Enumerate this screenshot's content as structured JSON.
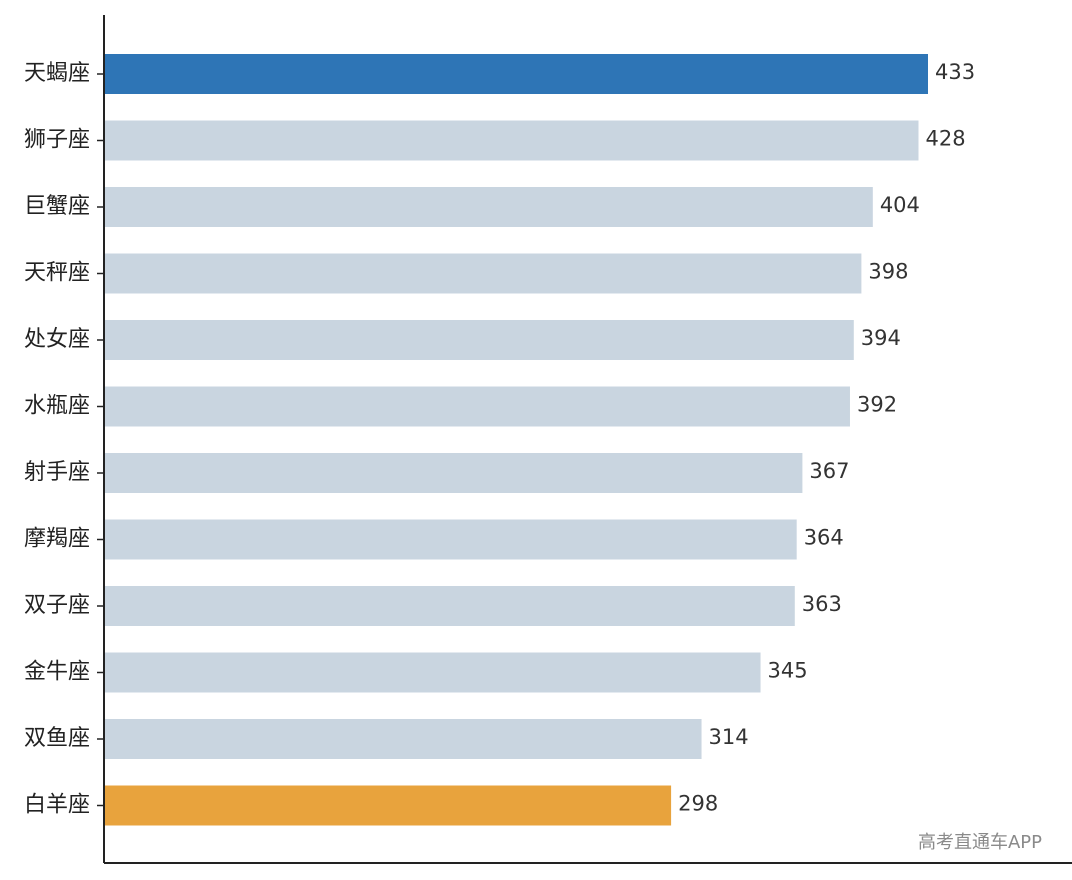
{
  "chart_data": {
    "type": "bar",
    "orientation": "horizontal",
    "categories": [
      "天蝎座",
      "狮子座",
      "巨蟹座",
      "天秤座",
      "处女座",
      "水瓶座",
      "射手座",
      "摩羯座",
      "双子座",
      "金牛座",
      "双鱼座",
      "白羊座"
    ],
    "values": [
      433,
      428,
      404,
      398,
      394,
      392,
      367,
      364,
      363,
      345,
      314,
      298
    ],
    "title": "",
    "xlabel": "",
    "ylabel": "",
    "xlim": [
      0,
      460
    ],
    "grid": false,
    "colors": {
      "highest": "#2e75b6",
      "lowest": "#e8a33d",
      "default": "#c9d5e0",
      "axis": "#222222"
    }
  },
  "watermark": "高考直通车APP"
}
